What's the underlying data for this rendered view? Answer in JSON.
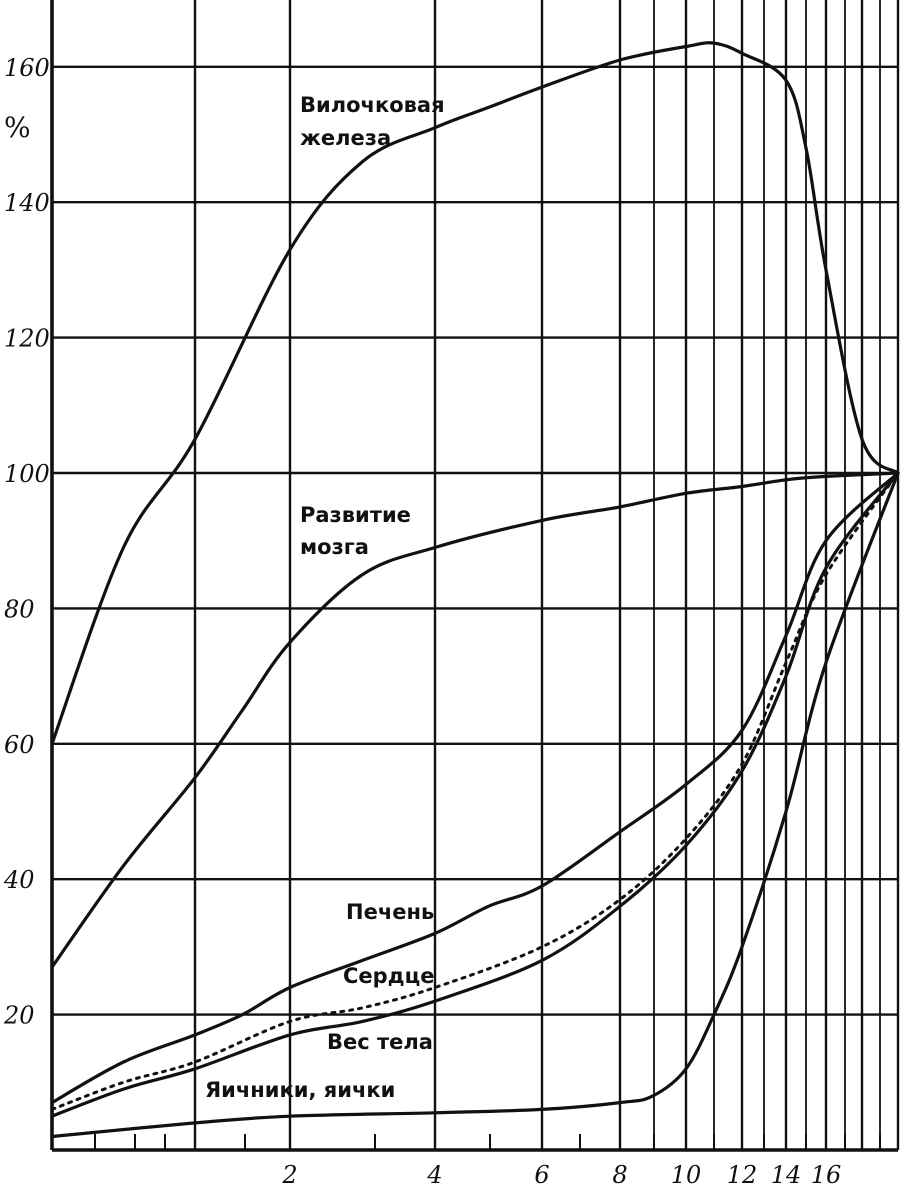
{
  "chart_data": {
    "type": "line",
    "ylabel": "%",
    "ylim": [
      0,
      170
    ],
    "y_ticks": [
      20,
      40,
      60,
      80,
      100,
      120,
      140,
      160
    ],
    "x_ticks": [
      2,
      4,
      6,
      8,
      10,
      12,
      14,
      16
    ],
    "x_tick_labels": [
      "2",
      "4",
      "6",
      "8",
      "10",
      "12",
      "14",
      "16"
    ],
    "grid": true,
    "series": [
      {
        "name": "Вилочковая железа",
        "style": "solid",
        "points": [
          [
            0,
            60
          ],
          [
            0.5,
            89
          ],
          [
            1,
            105
          ],
          [
            2,
            133
          ],
          [
            3,
            146
          ],
          [
            4,
            151
          ],
          [
            5,
            154
          ],
          [
            6,
            157
          ],
          [
            8,
            161
          ],
          [
            10,
            163
          ],
          [
            11,
            163.5
          ],
          [
            12,
            162
          ],
          [
            14,
            158
          ],
          [
            15,
            148
          ],
          [
            16,
            130
          ],
          [
            17,
            105
          ],
          [
            18,
            100
          ]
        ]
      },
      {
        "name": "Развитие мозга",
        "style": "solid",
        "points": [
          [
            0,
            27
          ],
          [
            0.5,
            42
          ],
          [
            1,
            55
          ],
          [
            1.5,
            65
          ],
          [
            2,
            75
          ],
          [
            3,
            85
          ],
          [
            4,
            89
          ],
          [
            6,
            93
          ],
          [
            8,
            95
          ],
          [
            10,
            97
          ],
          [
            12,
            98
          ],
          [
            14,
            99
          ],
          [
            16,
            99.5
          ],
          [
            18,
            100
          ]
        ]
      },
      {
        "name": "Печень",
        "style": "solid",
        "points": [
          [
            0,
            7
          ],
          [
            0.5,
            13
          ],
          [
            1,
            17
          ],
          [
            1.5,
            20
          ],
          [
            2,
            24
          ],
          [
            3,
            28
          ],
          [
            4,
            32
          ],
          [
            5,
            36
          ],
          [
            6,
            39
          ],
          [
            8,
            47
          ],
          [
            10,
            54
          ],
          [
            12,
            62
          ],
          [
            14,
            76
          ],
          [
            16,
            90
          ],
          [
            18,
            100
          ]
        ]
      },
      {
        "name": "Сердце",
        "style": "dotted",
        "points": [
          [
            0,
            6
          ],
          [
            0.5,
            10
          ],
          [
            1,
            13
          ],
          [
            2,
            19
          ],
          [
            3,
            21
          ],
          [
            4,
            24
          ],
          [
            6,
            30
          ],
          [
            8,
            37
          ],
          [
            10,
            46
          ],
          [
            12,
            57
          ],
          [
            14,
            72
          ],
          [
            16,
            85
          ],
          [
            18,
            100
          ]
        ]
      },
      {
        "name": "Вес тела",
        "style": "solid",
        "points": [
          [
            0,
            5
          ],
          [
            0.5,
            9
          ],
          [
            1,
            12
          ],
          [
            2,
            17
          ],
          [
            3,
            19
          ],
          [
            4,
            22
          ],
          [
            6,
            28
          ],
          [
            8,
            36
          ],
          [
            10,
            45
          ],
          [
            12,
            56
          ],
          [
            14,
            70
          ],
          [
            16,
            86
          ],
          [
            18,
            100
          ]
        ]
      },
      {
        "name": "Яичники, яички",
        "style": "solid",
        "points": [
          [
            0,
            2
          ],
          [
            1,
            4
          ],
          [
            2,
            5
          ],
          [
            4,
            5.5
          ],
          [
            6,
            6
          ],
          [
            8,
            7
          ],
          [
            9,
            8
          ],
          [
            10,
            12
          ],
          [
            11,
            20
          ],
          [
            12,
            30
          ],
          [
            14,
            50
          ],
          [
            16,
            72
          ],
          [
            18,
            100
          ]
        ]
      }
    ],
    "labels": {
      "thymus": [
        "Вилочковая",
        "железа"
      ],
      "brain": [
        "Развитие",
        "мозга"
      ],
      "liver": "Печень",
      "heart": "Сердце",
      "body": "Вес тела",
      "gonads": "Яичники, яички"
    }
  }
}
